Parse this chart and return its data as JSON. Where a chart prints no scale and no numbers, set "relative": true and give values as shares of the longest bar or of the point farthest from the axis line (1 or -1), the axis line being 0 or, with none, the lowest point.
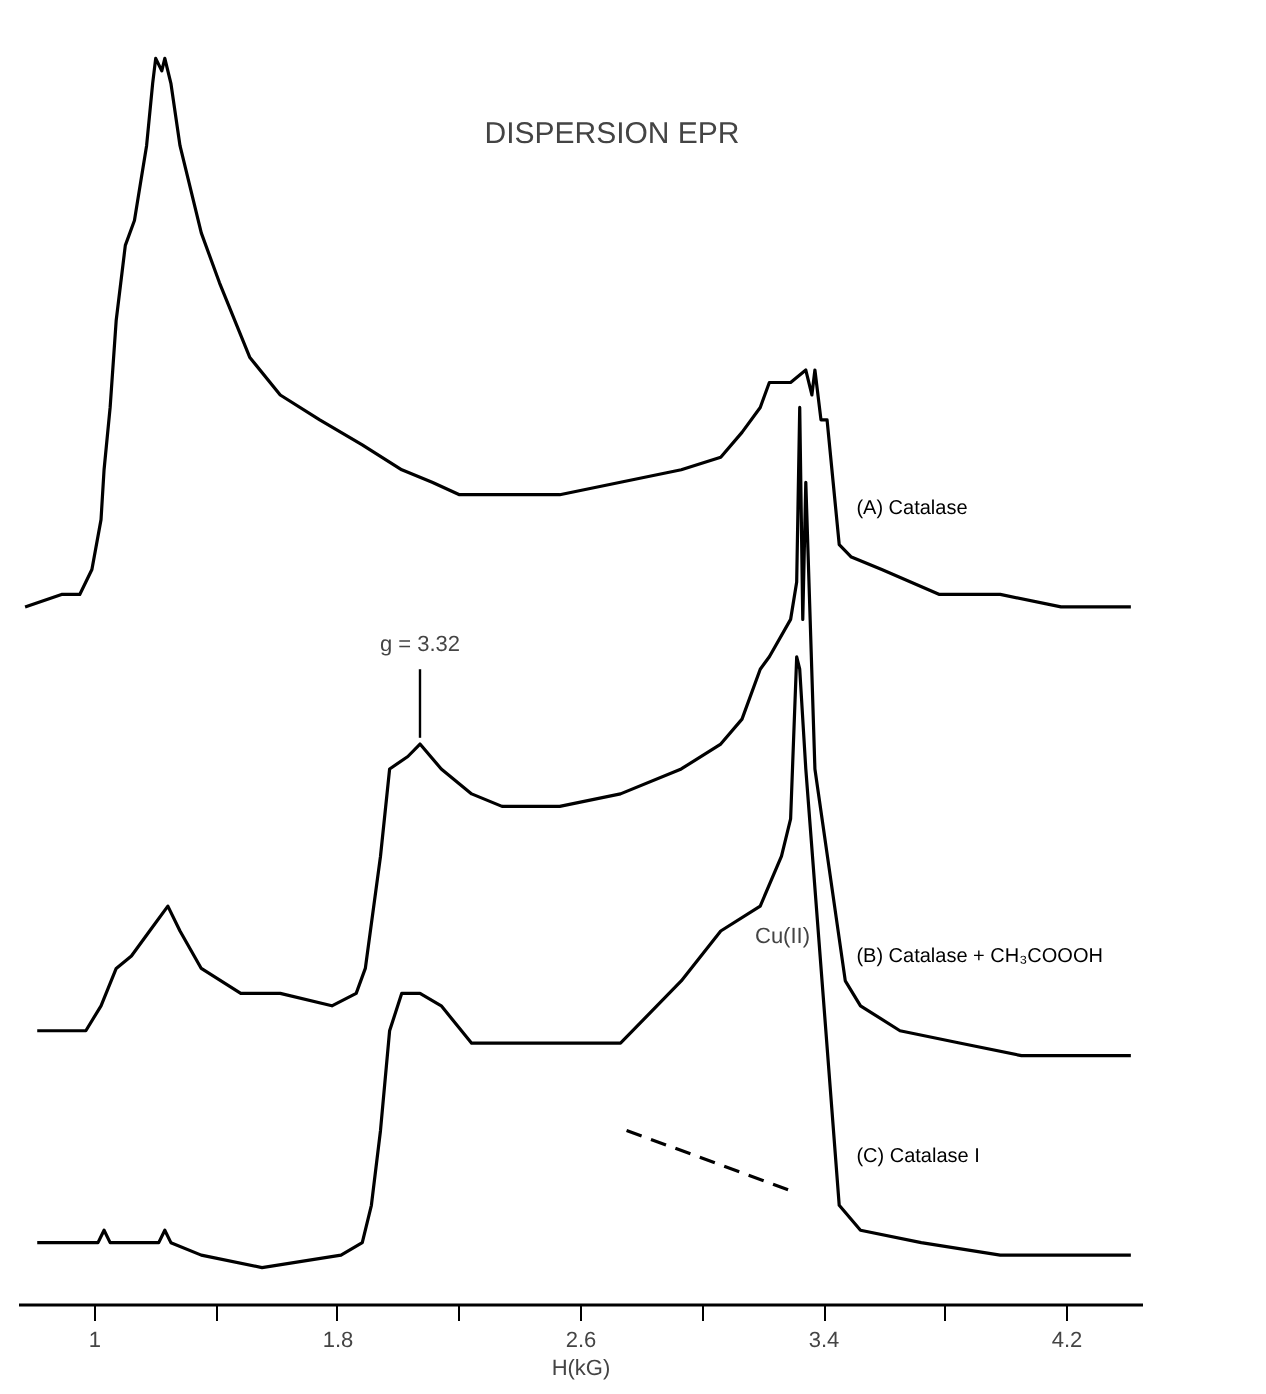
{
  "chart_data": {
    "type": "line",
    "title": "DISPERSION EPR",
    "xlabel": "H(kG)",
    "relative": true,
    "xlim": [
      0.75,
      4.45
    ],
    "xticks": [
      1.0,
      {
        "value": 1.4,
        "label": null
      },
      1.8,
      {
        "value": 2.2,
        "label": null
      },
      2.6,
      {
        "value": 3.0,
        "label": null
      },
      3.4,
      {
        "value": 3.8,
        "label": null
      },
      4.2
    ],
    "tick_labels": "x",
    "grid": false,
    "line_style": "solid",
    "annotations": [
      {
        "text": "g = 3.32",
        "x": 2.07,
        "y": 0.45
      },
      "Cu(II)"
    ],
    "series": [
      {
        "name": "(A) Catalase",
        "color": "#000000",
        "x": [
          0.77,
          0.89,
          0.95,
          0.99,
          1.02,
          1.03,
          1.05,
          1.07,
          1.1,
          1.13,
          1.15,
          1.17,
          1.19,
          1.2,
          1.22,
          1.23,
          1.25,
          1.28,
          1.35,
          1.41,
          1.51,
          1.61,
          1.74,
          1.88,
          2.01,
          2.11,
          2.2,
          2.34,
          2.53,
          2.73,
          2.93,
          3.06,
          3.13,
          3.19,
          3.22,
          3.29,
          3.34,
          3.36,
          3.37,
          3.39,
          3.41,
          3.43,
          3.45,
          3.49,
          3.59,
          3.78,
          3.98,
          4.18,
          4.41
        ],
        "values": [
          0.56,
          0.57,
          0.57,
          0.59,
          0.63,
          0.67,
          0.72,
          0.79,
          0.85,
          0.87,
          0.9,
          0.93,
          0.98,
          1.0,
          0.99,
          1.0,
          0.98,
          0.93,
          0.86,
          0.82,
          0.76,
          0.73,
          0.71,
          0.69,
          0.67,
          0.66,
          0.65,
          0.65,
          0.65,
          0.66,
          0.67,
          0.68,
          0.7,
          0.72,
          0.74,
          0.74,
          0.75,
          0.73,
          0.75,
          0.71,
          0.71,
          0.66,
          0.61,
          0.6,
          0.59,
          0.57,
          0.57,
          0.56,
          0.56
        ]
      },
      {
        "name": "(B) Catalase + CH₃COOOH",
        "color": "#000000",
        "x": [
          0.81,
          0.97,
          1.02,
          1.07,
          1.12,
          1.18,
          1.24,
          1.28,
          1.35,
          1.48,
          1.61,
          1.78,
          1.86,
          1.89,
          1.94,
          1.97,
          2.03,
          2.07,
          2.14,
          2.24,
          2.34,
          2.53,
          2.73,
          2.93,
          3.06,
          3.13,
          3.19,
          3.22,
          3.29,
          3.31,
          3.32,
          3.33,
          3.34,
          3.37,
          3.47,
          3.52,
          3.65,
          3.85,
          4.05,
          4.41
        ],
        "values": [
          0.22,
          0.22,
          0.24,
          0.27,
          0.28,
          0.3,
          0.32,
          0.3,
          0.27,
          0.25,
          0.25,
          0.24,
          0.25,
          0.27,
          0.36,
          0.43,
          0.44,
          0.45,
          0.43,
          0.41,
          0.4,
          0.4,
          0.41,
          0.43,
          0.45,
          0.47,
          0.51,
          0.52,
          0.55,
          0.58,
          0.72,
          0.55,
          0.66,
          0.43,
          0.26,
          0.24,
          0.22,
          0.21,
          0.2,
          0.2
        ]
      },
      {
        "name": "(C) Catalase I",
        "color": "#000000",
        "x": [
          0.81,
          1.01,
          1.03,
          1.05,
          1.21,
          1.23,
          1.25,
          1.35,
          1.55,
          1.81,
          1.88,
          1.91,
          1.94,
          1.97,
          2.01,
          2.07,
          2.14,
          2.24,
          2.34,
          2.53,
          2.73,
          2.93,
          3.06,
          3.19,
          3.26,
          3.29,
          3.31,
          3.32,
          3.34,
          3.45,
          3.52,
          3.72,
          3.98,
          4.41
        ],
        "values": [
          0.05,
          0.05,
          0.06,
          0.05,
          0.05,
          0.06,
          0.05,
          0.04,
          0.03,
          0.04,
          0.05,
          0.08,
          0.14,
          0.22,
          0.25,
          0.25,
          0.24,
          0.21,
          0.21,
          0.21,
          0.21,
          0.26,
          0.3,
          0.32,
          0.36,
          0.39,
          0.52,
          0.51,
          0.43,
          0.08,
          0.06,
          0.05,
          0.04,
          0.04
        ]
      },
      {
        "type": "line",
        "line_style": "dashed",
        "color": "#000000",
        "x": [
          2.75,
          3.31
        ],
        "values": [
          0.14,
          0.09
        ]
      }
    ]
  }
}
